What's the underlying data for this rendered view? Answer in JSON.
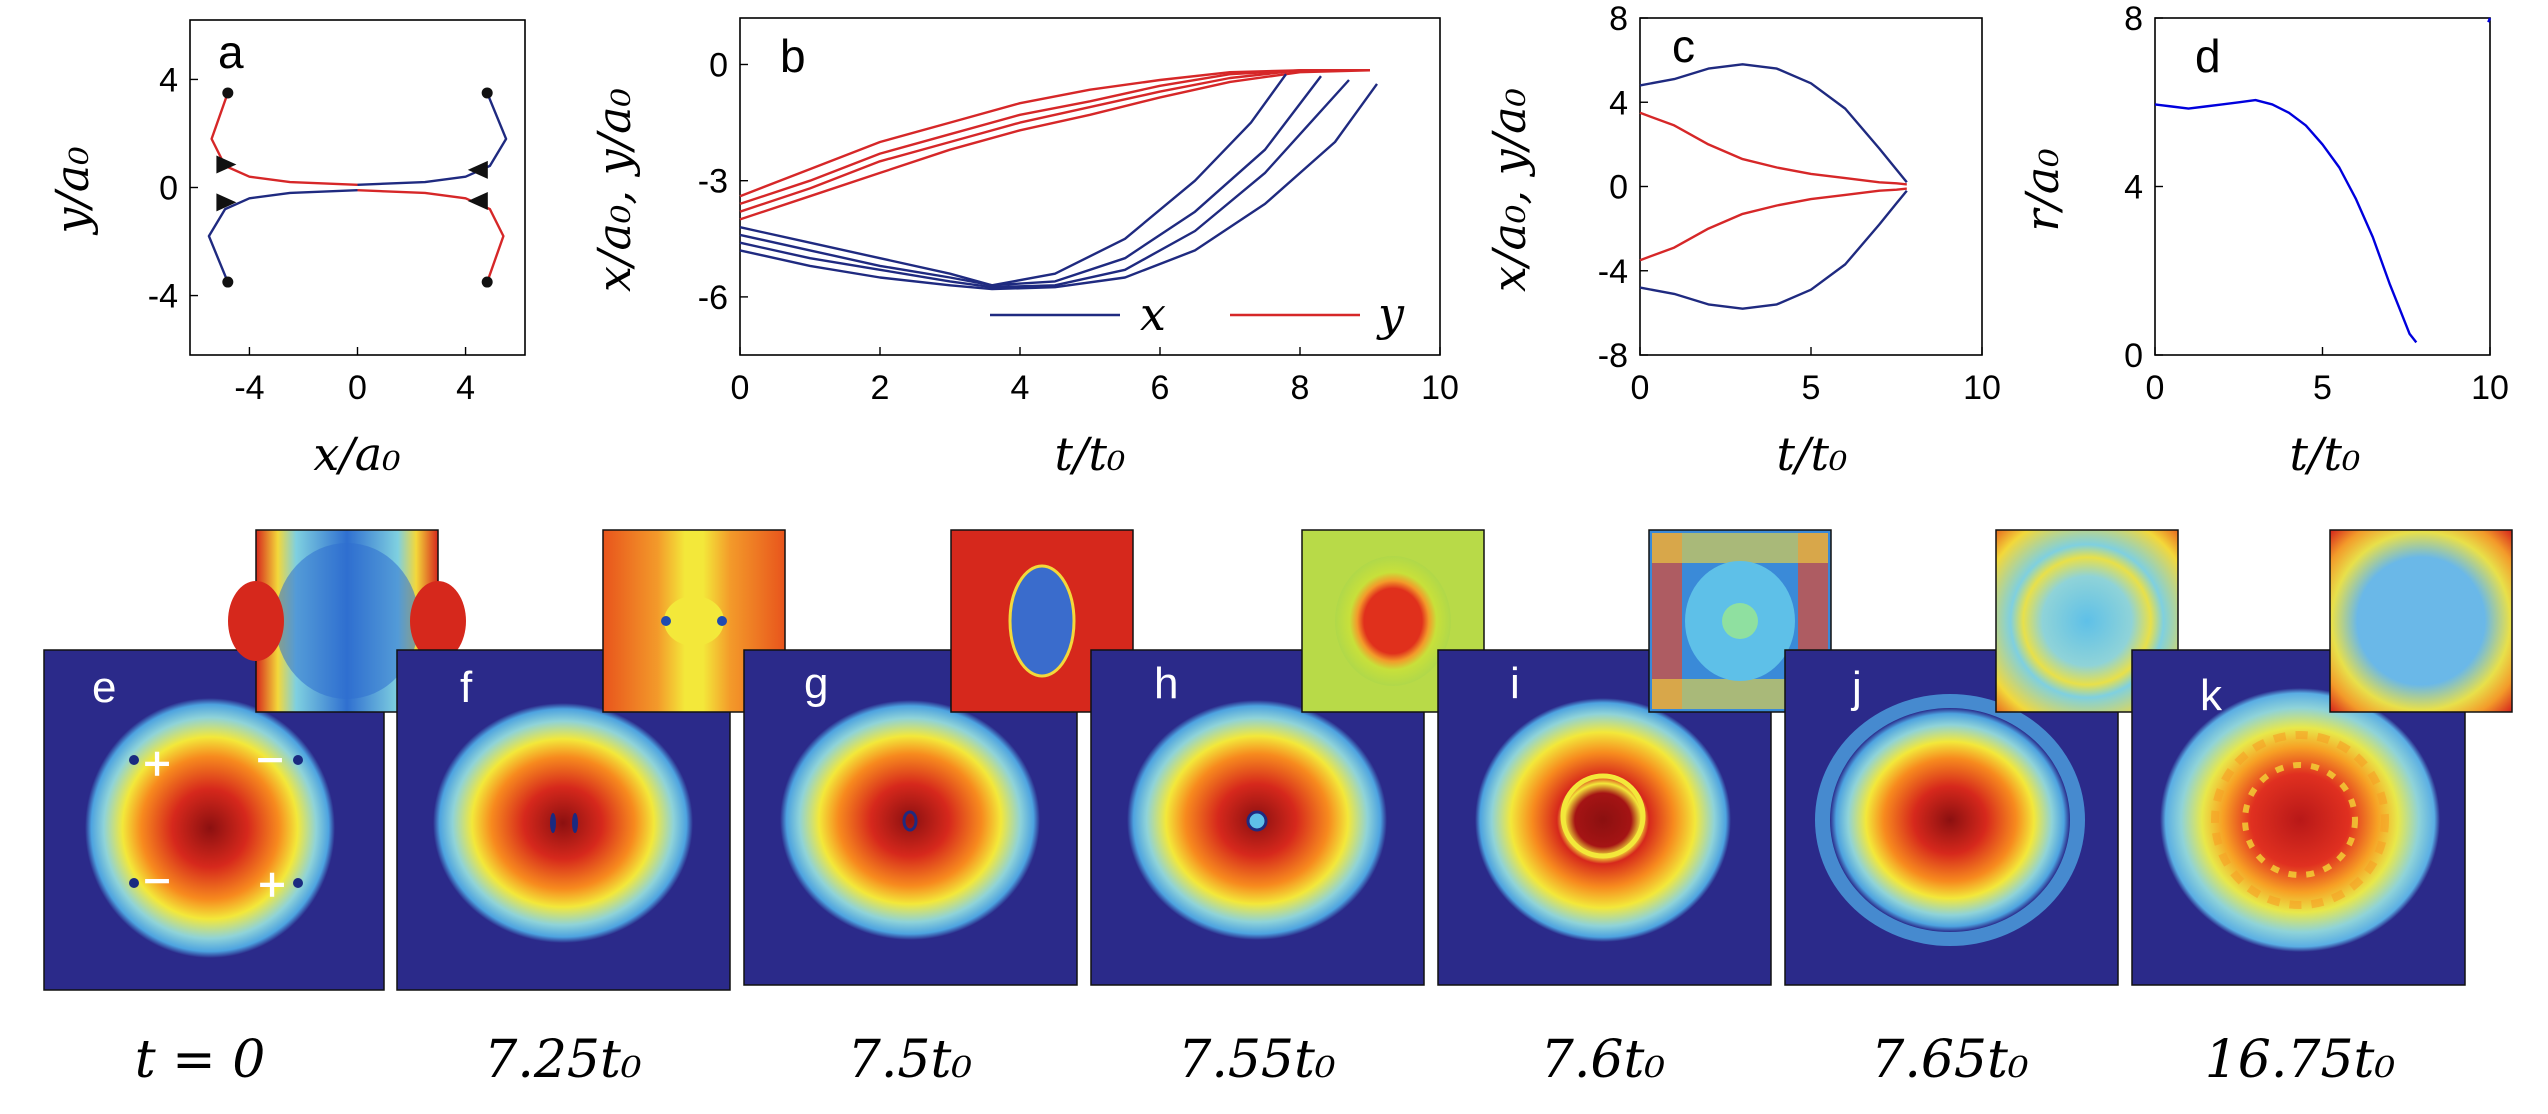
{
  "chart_data": [
    {
      "panel": "a",
      "type": "line",
      "xlabel": "x/a₀",
      "ylabel": "y/a₀",
      "xlim": [
        -6.2,
        6.2
      ],
      "ylim": [
        -6.2,
        6.2
      ],
      "xticks": [
        "-4",
        "0",
        "4"
      ],
      "yticks": [
        "4",
        "0",
        "-4"
      ],
      "series": [
        {
          "name": "vortex 1 (red)",
          "color": "#d62728",
          "x": [
            -4.8,
            -5.4,
            -4.9,
            -4.0,
            -2.5,
            0.0
          ],
          "y": [
            3.5,
            1.8,
            0.8,
            0.4,
            0.2,
            0.1
          ]
        },
        {
          "name": "vortex 2 (blue)",
          "color": "#1f2a80",
          "x": [
            -4.8,
            -5.5,
            -4.9,
            -4.0,
            -2.5,
            0.0
          ],
          "y": [
            -3.5,
            -1.8,
            -0.8,
            -0.4,
            -0.2,
            -0.1
          ]
        },
        {
          "name": "vortex 3 (blue)",
          "color": "#1f2a80",
          "x": [
            4.8,
            5.5,
            4.9,
            4.0,
            2.5,
            0.0
          ],
          "y": [
            3.5,
            1.8,
            0.8,
            0.4,
            0.2,
            0.1
          ]
        },
        {
          "name": "vortex 4 (red)",
          "color": "#d62728",
          "x": [
            4.8,
            5.4,
            4.9,
            4.0,
            2.5,
            0.0
          ],
          "y": [
            -3.5,
            -1.8,
            -0.8,
            -0.4,
            -0.2,
            -0.1
          ]
        }
      ],
      "start_points": [
        [
          -4.8,
          3.5
        ],
        [
          -4.8,
          -3.5
        ],
        [
          4.8,
          3.5
        ],
        [
          4.8,
          -3.5
        ]
      ]
    },
    {
      "panel": "b",
      "type": "line",
      "xlabel": "t/t₀",
      "ylabel": "x/a₀, y/a₀",
      "xlim": [
        0,
        10
      ],
      "ylim": [
        -7.5,
        1.2
      ],
      "xticks": [
        "0",
        "2",
        "4",
        "6",
        "8",
        "10"
      ],
      "yticks": [
        "0",
        "-3",
        "-6"
      ],
      "legend": [
        {
          "label": "x",
          "color": "#1f2a80"
        },
        {
          "label": "y",
          "color": "#d62728"
        }
      ],
      "series": [
        {
          "name": "y run 1",
          "color": "#d62728",
          "x": [
            0,
            1,
            2,
            3,
            4,
            5,
            6,
            7,
            8,
            9
          ],
          "y": [
            -3.4,
            -2.7,
            -2.0,
            -1.5,
            -1.0,
            -0.65,
            -0.4,
            -0.2,
            -0.15,
            -0.15
          ]
        },
        {
          "name": "y run 2",
          "color": "#d62728",
          "x": [
            0,
            1,
            2,
            3,
            4,
            5,
            6,
            7,
            8,
            9
          ],
          "y": [
            -3.6,
            -3.0,
            -2.3,
            -1.8,
            -1.3,
            -0.95,
            -0.55,
            -0.25,
            -0.15,
            -0.15
          ]
        },
        {
          "name": "y run 3",
          "color": "#d62728",
          "x": [
            0,
            1,
            2,
            3,
            4,
            5,
            6,
            7,
            8,
            9
          ],
          "y": [
            -3.8,
            -3.2,
            -2.5,
            -2.0,
            -1.5,
            -1.1,
            -0.7,
            -0.35,
            -0.15,
            -0.15
          ]
        },
        {
          "name": "y run 4",
          "color": "#d62728",
          "x": [
            0,
            1,
            2,
            3,
            4,
            5,
            6,
            7,
            8,
            9
          ],
          "y": [
            -4.0,
            -3.4,
            -2.8,
            -2.2,
            -1.7,
            -1.3,
            -0.85,
            -0.45,
            -0.2,
            -0.15
          ]
        },
        {
          "name": "x run 1",
          "color": "#1f2a80",
          "x": [
            0,
            1,
            2,
            3,
            3.6,
            4.5,
            5.5,
            6.5,
            7.3,
            7.8
          ],
          "y": [
            -4.2,
            -4.6,
            -5.0,
            -5.4,
            -5.7,
            -5.4,
            -4.5,
            -3.0,
            -1.5,
            -0.25
          ]
        },
        {
          "name": "x run 2",
          "color": "#1f2a80",
          "x": [
            0,
            1,
            2,
            3,
            3.6,
            4.5,
            5.5,
            6.5,
            7.5,
            8.3
          ],
          "y": [
            -4.4,
            -4.8,
            -5.2,
            -5.5,
            -5.7,
            -5.6,
            -5.0,
            -3.8,
            -2.2,
            -0.3
          ]
        },
        {
          "name": "x run 3",
          "color": "#1f2a80",
          "x": [
            0,
            1,
            2,
            3,
            3.6,
            4.5,
            5.5,
            6.5,
            7.5,
            8.7
          ],
          "y": [
            -4.6,
            -5.0,
            -5.3,
            -5.6,
            -5.75,
            -5.7,
            -5.3,
            -4.3,
            -2.8,
            -0.4
          ]
        },
        {
          "name": "x run 4",
          "color": "#1f2a80",
          "x": [
            0,
            1,
            2,
            3,
            3.6,
            4.5,
            5.5,
            6.5,
            7.5,
            8.5,
            9.1
          ],
          "y": [
            -4.8,
            -5.2,
            -5.5,
            -5.7,
            -5.8,
            -5.75,
            -5.5,
            -4.8,
            -3.6,
            -2.0,
            -0.5
          ]
        }
      ]
    },
    {
      "panel": "c",
      "type": "line",
      "xlabel": "t/t₀",
      "ylabel": "x/a₀, y/a₀",
      "xlim": [
        0,
        10
      ],
      "ylim": [
        -8,
        8
      ],
      "xticks": [
        "0",
        "5",
        "10"
      ],
      "yticks": [
        "8",
        "4",
        "0",
        "-4",
        "-8"
      ],
      "series": [
        {
          "name": "x upper",
          "color": "#1f2a80",
          "x": [
            0,
            1,
            2,
            3,
            4,
            5,
            6,
            7,
            7.5,
            7.8
          ],
          "y": [
            4.8,
            5.1,
            5.6,
            5.8,
            5.6,
            4.9,
            3.7,
            1.8,
            0.8,
            0.2
          ]
        },
        {
          "name": "y upper",
          "color": "#d62728",
          "x": [
            0,
            1,
            2,
            3,
            4,
            5,
            6,
            7,
            7.5,
            7.8
          ],
          "y": [
            3.5,
            2.9,
            2.0,
            1.3,
            0.9,
            0.6,
            0.4,
            0.2,
            0.15,
            0.1
          ]
        },
        {
          "name": "y lower",
          "color": "#d62728",
          "x": [
            0,
            1,
            2,
            3,
            4,
            5,
            6,
            7,
            7.5,
            7.8
          ],
          "y": [
            -3.5,
            -2.9,
            -2.0,
            -1.3,
            -0.9,
            -0.6,
            -0.4,
            -0.2,
            -0.15,
            -0.1
          ]
        },
        {
          "name": "x lower",
          "color": "#1f2a80",
          "x": [
            0,
            1,
            2,
            3,
            4,
            5,
            6,
            7,
            7.5,
            7.8
          ],
          "y": [
            -4.8,
            -5.1,
            -5.6,
            -5.8,
            -5.6,
            -4.9,
            -3.7,
            -1.8,
            -0.8,
            -0.2
          ]
        }
      ]
    },
    {
      "panel": "d",
      "type": "line",
      "xlabel": "t/t₀",
      "ylabel": "r/a₀",
      "xlim": [
        0,
        10
      ],
      "ylim": [
        0,
        8
      ],
      "xticks": [
        "0",
        "5",
        "10"
      ],
      "yticks": [
        "8",
        "4",
        "0"
      ],
      "series": [
        {
          "name": "r",
          "color": "#0000dd",
          "x": [
            0,
            0.5,
            1,
            1.5,
            2,
            2.5,
            3,
            3.5,
            4,
            4.5,
            5,
            5.5,
            6,
            6.5,
            7,
            7.3,
            7.6,
            7.8
          ],
          "y": [
            5.95,
            5.9,
            5.85,
            5.9,
            5.95,
            6.0,
            6.05,
            5.95,
            5.75,
            5.45,
            5.0,
            4.45,
            3.7,
            2.8,
            1.7,
            1.1,
            0.5,
            0.3
          ]
        },
        {
          "name": "r (late)",
          "color": "#0000dd",
          "x": [
            9.95,
            10
          ],
          "y": [
            7.9,
            8.0
          ]
        }
      ]
    }
  ],
  "snapshots": [
    {
      "panel": "e",
      "time": "t = 0",
      "markers": [
        "+",
        "−",
        "−",
        "+"
      ]
    },
    {
      "panel": "f",
      "time": "7.25t₀"
    },
    {
      "panel": "g",
      "time": "7.5t₀"
    },
    {
      "panel": "h",
      "time": "7.55t₀"
    },
    {
      "panel": "i",
      "time": "7.6t₀"
    },
    {
      "panel": "j",
      "time": "7.65t₀"
    },
    {
      "panel": "k",
      "time": "16.75t₀"
    }
  ],
  "colors": {
    "blue_line": "#1f2a80",
    "red_line": "#d62728",
    "density_bg": "#2b2a8a"
  }
}
